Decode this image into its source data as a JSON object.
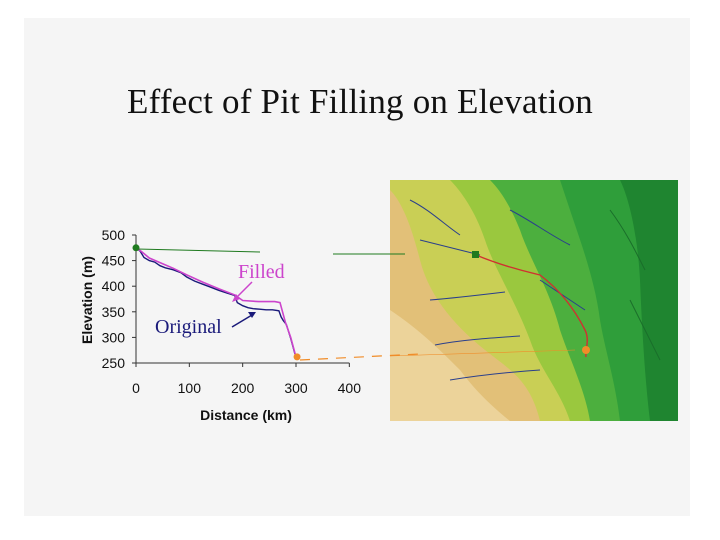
{
  "slide": {
    "title": "Effect of Pit Filling on Elevation"
  },
  "chart_data": {
    "type": "line",
    "xlabel": "Distance (km)",
    "ylabel": "Elevation (m)",
    "xlim": [
      0,
      400
    ],
    "ylim": [
      250,
      500
    ],
    "x_ticks": [
      "0",
      "100",
      "200",
      "300",
      "400"
    ],
    "y_ticks": [
      "500",
      "450",
      "400",
      "350",
      "300",
      "250"
    ],
    "series": [
      {
        "name": "Original",
        "color": "#1a1a7a",
        "points": [
          [
            0,
            475
          ],
          [
            8,
            468
          ],
          [
            15,
            456
          ],
          [
            25,
            450
          ],
          [
            35,
            447
          ],
          [
            45,
            440
          ],
          [
            55,
            436
          ],
          [
            70,
            432
          ],
          [
            85,
            426
          ],
          [
            95,
            418
          ],
          [
            110,
            410
          ],
          [
            125,
            404
          ],
          [
            140,
            398
          ],
          [
            155,
            392
          ],
          [
            170,
            387
          ],
          [
            185,
            382
          ],
          [
            190,
            368
          ],
          [
            200,
            362
          ],
          [
            210,
            358
          ],
          [
            220,
            356
          ],
          [
            232,
            355
          ],
          [
            244,
            354
          ],
          [
            256,
            354
          ],
          [
            268,
            352
          ],
          [
            272,
            340
          ],
          [
            276,
            333
          ],
          [
            282,
            325
          ],
          [
            286,
            312
          ],
          [
            290,
            298
          ],
          [
            294,
            283
          ],
          [
            298,
            268
          ],
          [
            302,
            262
          ]
        ]
      },
      {
        "name": "Filled",
        "color": "#cc44cc",
        "points": [
          [
            0,
            475
          ],
          [
            10,
            468
          ],
          [
            25,
            455
          ],
          [
            45,
            446
          ],
          [
            70,
            435
          ],
          [
            95,
            422
          ],
          [
            125,
            408
          ],
          [
            155,
            395
          ],
          [
            185,
            383
          ],
          [
            200,
            372
          ],
          [
            230,
            370
          ],
          [
            260,
            370
          ],
          [
            270,
            368
          ],
          [
            280,
            330
          ],
          [
            290,
            300
          ],
          [
            300,
            262
          ]
        ]
      }
    ],
    "labels": {
      "filled": "Filled",
      "original": "Original"
    },
    "markers": [
      {
        "name": "start",
        "x": 0,
        "y": 475,
        "color": "#1f7a1f"
      },
      {
        "name": "end",
        "x": 302,
        "y": 262,
        "color": "#f08c28"
      }
    ]
  },
  "colors": {
    "start_marker": "#1f7a1f",
    "end_marker": "#f08c28",
    "map_green": "#2ea043",
    "map_tan": "#e6c173"
  }
}
